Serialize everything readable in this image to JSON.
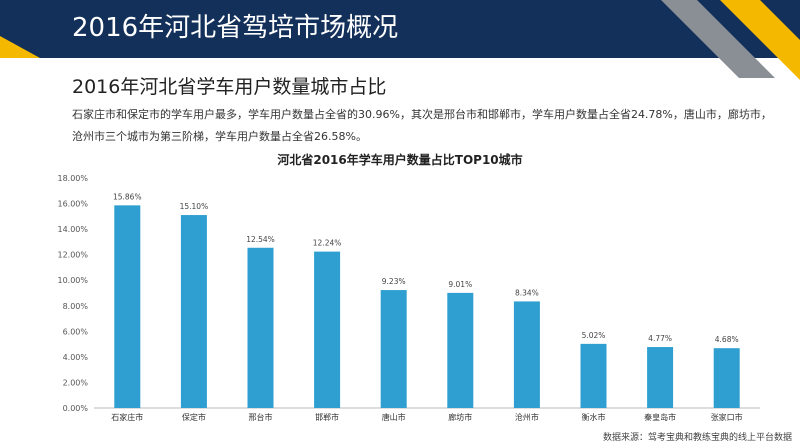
{
  "header": {
    "title": "2016年河北省驾培市场概况"
  },
  "section": {
    "subtitle": "2016年河北省学车用户数量城市占比",
    "description": "石家庄市和保定市的学车用户最多，学车用户数量占全省的30.96%，其次是邢台市和邯郸市，学车用户数量占全省24.78%，唐山市，廊坊市，沧州市三个城市为第三阶梯，学车用户数量占全省26.58%。"
  },
  "source": "数据来源：驾考宝典和教练宝典的线上平台数据",
  "colors": {
    "header": "#13305a",
    "accent": "#f5b800",
    "gray_stripe": "#8a8f96",
    "bar": "#2e9fd0"
  },
  "chart_data": {
    "type": "bar",
    "title": "河北省2016年学车用户数量占比TOP10城市",
    "categories": [
      "石家庄市",
      "保定市",
      "邢台市",
      "邯郸市",
      "唐山市",
      "廊坊市",
      "沧州市",
      "衡水市",
      "秦皇岛市",
      "张家口市"
    ],
    "values": [
      15.86,
      15.1,
      12.54,
      12.24,
      9.23,
      9.01,
      8.34,
      5.02,
      4.77,
      4.68
    ],
    "value_labels": [
      "15.86%",
      "15.10%",
      "12.54%",
      "12.24%",
      "9.23%",
      "9.01%",
      "8.34%",
      "5.02%",
      "4.77%",
      "4.68%"
    ],
    "ylim": [
      0,
      18
    ],
    "yticks": [
      "0.00%",
      "2.00%",
      "4.00%",
      "6.00%",
      "8.00%",
      "10.00%",
      "12.00%",
      "14.00%",
      "16.00%",
      "18.00%"
    ],
    "grid": false,
    "xlabel": "",
    "ylabel": ""
  }
}
